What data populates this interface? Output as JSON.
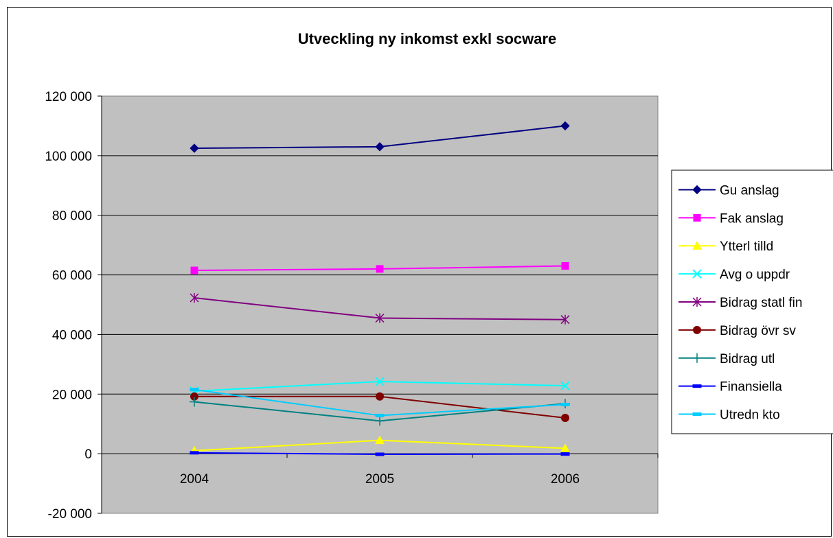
{
  "chart_data": {
    "type": "line",
    "title": "Utveckling ny inkomst exkl socware",
    "xlabel": "",
    "ylabel": "",
    "categories": [
      "2004",
      "2005",
      "2006"
    ],
    "ylim": [
      -20000,
      120000
    ],
    "yticks": [
      -20000,
      0,
      20000,
      40000,
      60000,
      80000,
      100000,
      120000
    ],
    "ytick_labels": [
      "-20 000",
      "0",
      "20 000",
      "40 000",
      "60 000",
      "80 000",
      "100 000",
      "120 000"
    ],
    "grid": "horizontal major gridlines",
    "plot_background": "#c0c0c0",
    "legend_position": "right",
    "series": [
      {
        "name": "Gu anslag",
        "values": [
          102500,
          103000,
          110000
        ],
        "color": "#000080",
        "marker": "diamond"
      },
      {
        "name": "Fak anslag",
        "values": [
          61500,
          62000,
          63000
        ],
        "color": "#ff00ff",
        "marker": "square"
      },
      {
        "name": "Ytterl tilld",
        "values": [
          1000,
          4500,
          1800
        ],
        "color": "#ffff00",
        "marker": "triangle"
      },
      {
        "name": "Avg o uppdr",
        "values": [
          21000,
          24200,
          22800
        ],
        "color": "#00ffff",
        "marker": "x"
      },
      {
        "name": "Bidrag statl fin",
        "values": [
          52300,
          45500,
          45000
        ],
        "color": "#800080",
        "marker": "asterisk"
      },
      {
        "name": "Bidrag övr sv",
        "values": [
          19200,
          19200,
          12000
        ],
        "color": "#800000",
        "marker": "circle"
      },
      {
        "name": "Bidrag utl",
        "values": [
          17400,
          11000,
          16800
        ],
        "color": "#008080",
        "marker": "plus"
      },
      {
        "name": "Finansiella",
        "values": [
          300,
          -200,
          -100
        ],
        "color": "#0000ff",
        "marker": "dash"
      },
      {
        "name": "Utredn kto",
        "values": [
          21500,
          12800,
          16500
        ],
        "color": "#00ccff",
        "marker": "dash"
      }
    ]
  }
}
